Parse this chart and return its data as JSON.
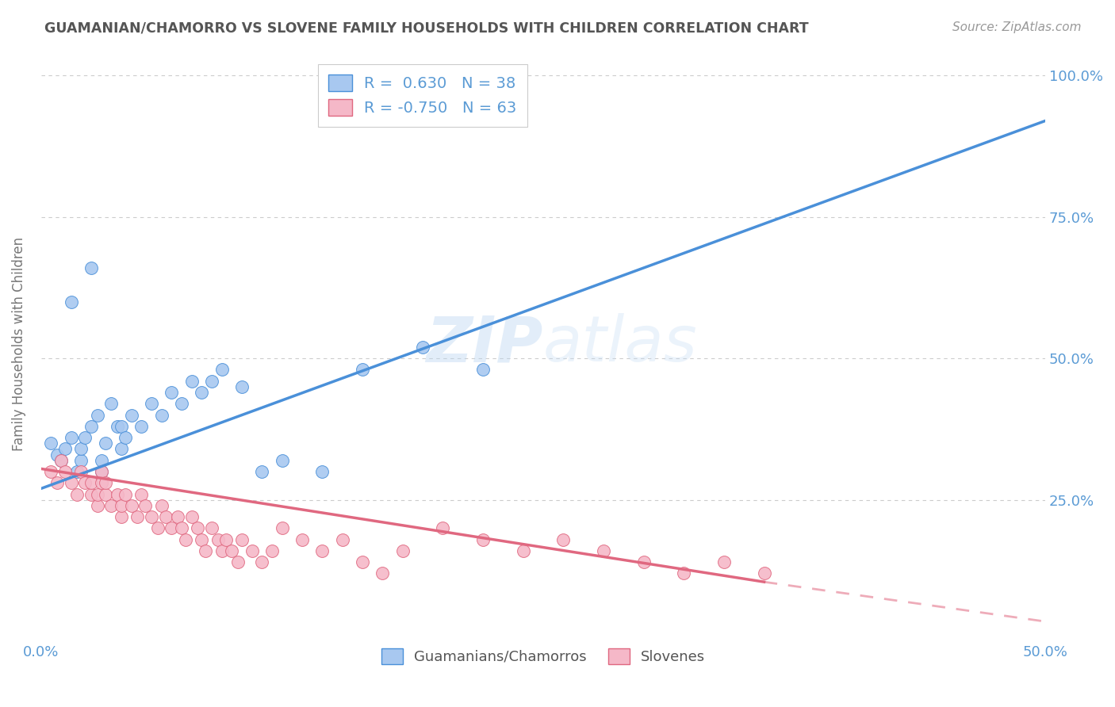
{
  "title": "GUAMANIAN/CHAMORRO VS SLOVENE FAMILY HOUSEHOLDS WITH CHILDREN CORRELATION CHART",
  "source": "Source: ZipAtlas.com",
  "ylabel": "Family Households with Children",
  "xlim": [
    0.0,
    0.5
  ],
  "ylim": [
    0.0,
    1.05
  ],
  "yticks": [
    0.0,
    0.25,
    0.5,
    0.75,
    1.0
  ],
  "ytick_labels": [
    "",
    "25.0%",
    "50.0%",
    "75.0%",
    "100.0%"
  ],
  "xticks": [
    0.0,
    0.1,
    0.2,
    0.3,
    0.4,
    0.5
  ],
  "xtick_labels": [
    "0.0%",
    "",
    "",
    "",
    "",
    "50.0%"
  ],
  "blue_R": 0.63,
  "blue_N": 38,
  "pink_R": -0.75,
  "pink_N": 63,
  "blue_color": "#A8C8F0",
  "pink_color": "#F5B8C8",
  "blue_line_color": "#4A90D9",
  "pink_line_color": "#E06880",
  "grid_color": "#CCCCCC",
  "background_color": "#FFFFFF",
  "axis_color": "#5B9BD5",
  "watermark": "ZIPatlas",
  "legend_label_blue": "Guamanians/Chamorros",
  "legend_label_pink": "Slovenes",
  "blue_scatter_x": [
    0.005,
    0.008,
    0.01,
    0.012,
    0.015,
    0.018,
    0.02,
    0.02,
    0.022,
    0.025,
    0.028,
    0.03,
    0.03,
    0.032,
    0.035,
    0.038,
    0.04,
    0.04,
    0.042,
    0.045,
    0.05,
    0.055,
    0.06,
    0.065,
    0.07,
    0.075,
    0.08,
    0.085,
    0.09,
    0.1,
    0.11,
    0.12,
    0.14,
    0.16,
    0.19,
    0.22,
    0.015,
    0.025
  ],
  "blue_scatter_y": [
    0.35,
    0.33,
    0.32,
    0.34,
    0.36,
    0.3,
    0.32,
    0.34,
    0.36,
    0.38,
    0.4,
    0.3,
    0.32,
    0.35,
    0.42,
    0.38,
    0.34,
    0.38,
    0.36,
    0.4,
    0.38,
    0.42,
    0.4,
    0.44,
    0.42,
    0.46,
    0.44,
    0.46,
    0.48,
    0.45,
    0.3,
    0.32,
    0.3,
    0.48,
    0.52,
    0.48,
    0.6,
    0.66
  ],
  "pink_scatter_x": [
    0.005,
    0.008,
    0.01,
    0.012,
    0.015,
    0.018,
    0.02,
    0.022,
    0.025,
    0.025,
    0.028,
    0.028,
    0.03,
    0.03,
    0.032,
    0.032,
    0.035,
    0.038,
    0.04,
    0.04,
    0.042,
    0.045,
    0.048,
    0.05,
    0.052,
    0.055,
    0.058,
    0.06,
    0.062,
    0.065,
    0.068,
    0.07,
    0.072,
    0.075,
    0.078,
    0.08,
    0.082,
    0.085,
    0.088,
    0.09,
    0.092,
    0.095,
    0.098,
    0.1,
    0.105,
    0.11,
    0.115,
    0.12,
    0.13,
    0.14,
    0.15,
    0.16,
    0.17,
    0.18,
    0.2,
    0.22,
    0.24,
    0.26,
    0.28,
    0.3,
    0.32,
    0.34,
    0.36
  ],
  "pink_scatter_y": [
    0.3,
    0.28,
    0.32,
    0.3,
    0.28,
    0.26,
    0.3,
    0.28,
    0.26,
    0.28,
    0.24,
    0.26,
    0.28,
    0.3,
    0.26,
    0.28,
    0.24,
    0.26,
    0.22,
    0.24,
    0.26,
    0.24,
    0.22,
    0.26,
    0.24,
    0.22,
    0.2,
    0.24,
    0.22,
    0.2,
    0.22,
    0.2,
    0.18,
    0.22,
    0.2,
    0.18,
    0.16,
    0.2,
    0.18,
    0.16,
    0.18,
    0.16,
    0.14,
    0.18,
    0.16,
    0.14,
    0.16,
    0.2,
    0.18,
    0.16,
    0.18,
    0.14,
    0.12,
    0.16,
    0.2,
    0.18,
    0.16,
    0.18,
    0.16,
    0.14,
    0.12,
    0.14,
    0.12
  ]
}
